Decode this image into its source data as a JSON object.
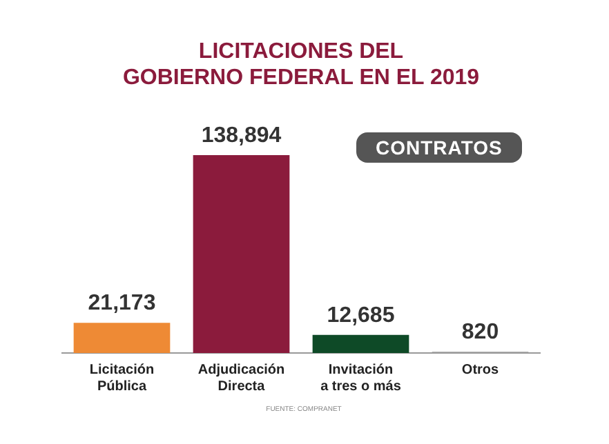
{
  "chart_data": {
    "type": "bar",
    "title": "LICITACIONES DEL\nGOBIERNO FEDERAL EN EL 2019",
    "categories": [
      "Licitación\nPública",
      "Adjudicación\nDirecta",
      "Invitación\na tres o más",
      "Otros"
    ],
    "values": [
      21173,
      138894,
      12685,
      820
    ],
    "colors": [
      "#ee8a35",
      "#8b1b3c",
      "#0e4a27",
      "#9a9a9a"
    ],
    "value_labels": [
      "21,173",
      "138,894",
      "12,685",
      "820"
    ],
    "annotations": [
      "CONTRATOS",
      "FUENTE: COMPRANET"
    ]
  }
}
